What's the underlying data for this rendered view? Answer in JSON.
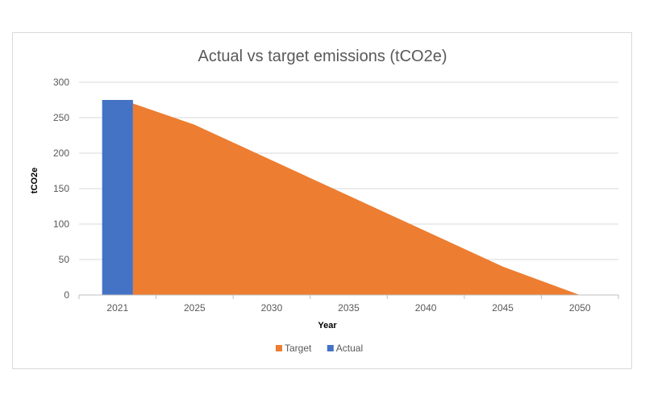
{
  "chart_data": {
    "type": "area",
    "title": "Actual vs target emissions (tCO2e)",
    "xlabel": "Year",
    "ylabel": "tCO2e",
    "ylim": [
      0,
      300
    ],
    "yticks": [
      0,
      50,
      100,
      150,
      200,
      250,
      300
    ],
    "categories": [
      "2021",
      "2025",
      "2030",
      "2035",
      "2040",
      "2045",
      "2050"
    ],
    "series": [
      {
        "name": "Target",
        "type": "area",
        "color": "#ED7D31",
        "values": [
          270,
          240,
          190,
          140,
          90,
          40,
          0
        ]
      },
      {
        "name": "Actual",
        "type": "bar",
        "color": "#4472C4",
        "values": [
          275,
          null,
          null,
          null,
          null,
          null,
          null
        ]
      }
    ],
    "grid": true,
    "legend_position": "bottom"
  }
}
